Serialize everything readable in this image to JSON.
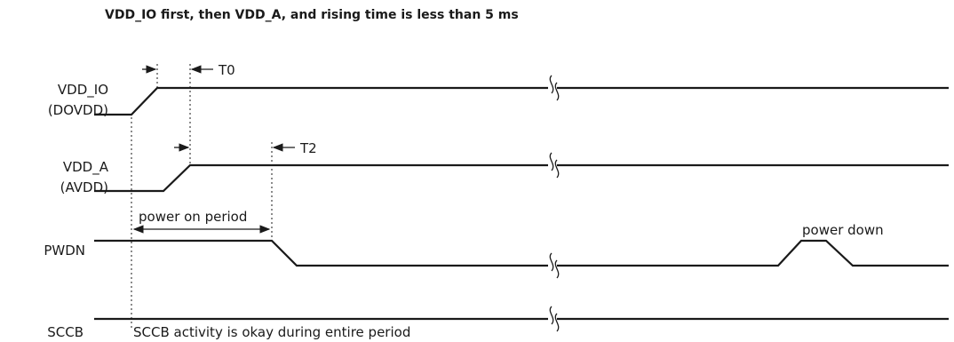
{
  "title": "VDD_IO first, then VDD_A, and rising time is less than 5 ms",
  "signals": {
    "vdd_io": {
      "name": "VDD_IO",
      "alias": "(DOVDD)"
    },
    "vdd_a": {
      "name": "VDD_A",
      "alias": "(AVDD)"
    },
    "pwdn": {
      "name": "PWDN"
    },
    "sccb": {
      "name": "SCCB"
    }
  },
  "annotations": {
    "t0": "T0",
    "t2": "T2",
    "power_on_period": "power on period",
    "power_down": "power down",
    "sccb_note": "SCCB activity is okay during entire period"
  }
}
